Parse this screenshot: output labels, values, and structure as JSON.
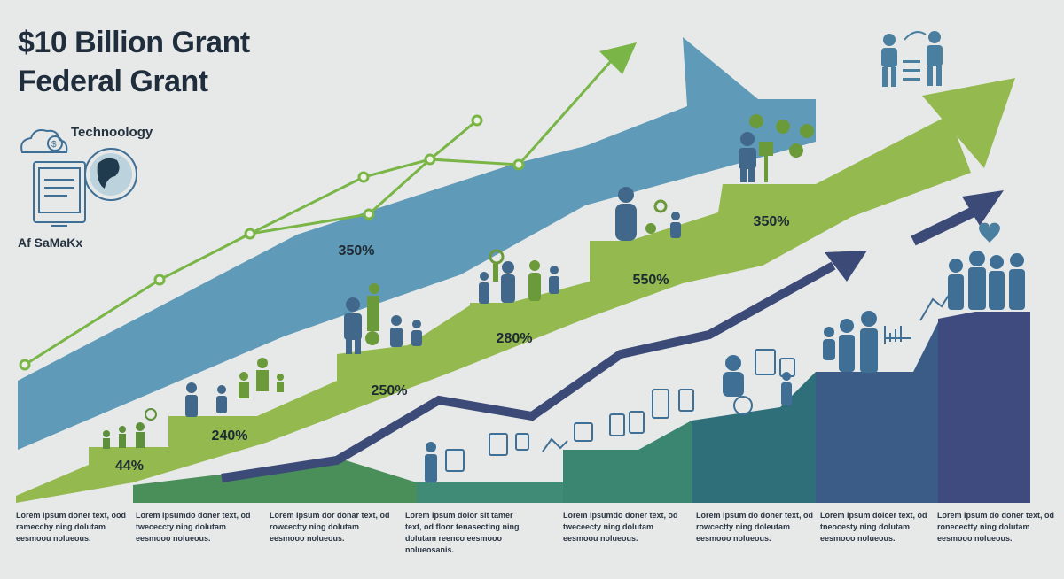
{
  "title": {
    "line1": "$10 Billion Grant",
    "line2": "Federal Grant"
  },
  "side_labels": {
    "technology": "Technoology",
    "sub": "Af SaMaKx"
  },
  "blue_band_label": "350%",
  "steps": [
    {
      "label": "44%"
    },
    {
      "label": "240%"
    },
    {
      "label": "250%"
    },
    {
      "label": "280%"
    },
    {
      "label": "550%"
    },
    {
      "label": "350%"
    }
  ],
  "captions": [
    {
      "text": "Lorem Ipsum doner text, ood ramecchy ning dolutam eesmoou nolueous."
    },
    {
      "text": "Lorem ipsumdo doner text, od twececcty ning dolutam eesmooo nolueous."
    },
    {
      "text": "Lorem Ipsum dor donar text, od rowcectty ning dolutam eesmooo nolueous."
    },
    {
      "text": "Lorem Ipsum dolor sit tamer text, od floor tenasecting ning dolutam reenco eesmooo nolueosanis."
    },
    {
      "text": "Lorem Ipsumdo doner text, od tweceecty ning dolutam eesmoou nolueous."
    },
    {
      "text": "Lorem Ipsum do doner text, od rowcectty ning doleutam eesmooo nolueous."
    },
    {
      "text": "Lorem Ipsum dolcer text, od tneocesty ning dolutam eesmooo nolueous."
    },
    {
      "text": "Lorem Ipsum do doner text, od ronecectty ning dolutam eesmooo nolueous."
    }
  ],
  "colors": {
    "blue_band": "#5f9ab8",
    "green_band": "#93b94f",
    "green_line": "#7ab547",
    "navy_line": "#3c4a78",
    "teal_bars": "#3f8b76",
    "navy_bars": "#3f4b7e",
    "figures": "#4b7fa0"
  },
  "icons": [
    "cloud-dollar-icon",
    "tablet-icon",
    "globe-icon",
    "people-icon",
    "dollar-coin-icon",
    "gauge-icon",
    "heart-plant-icon"
  ]
}
